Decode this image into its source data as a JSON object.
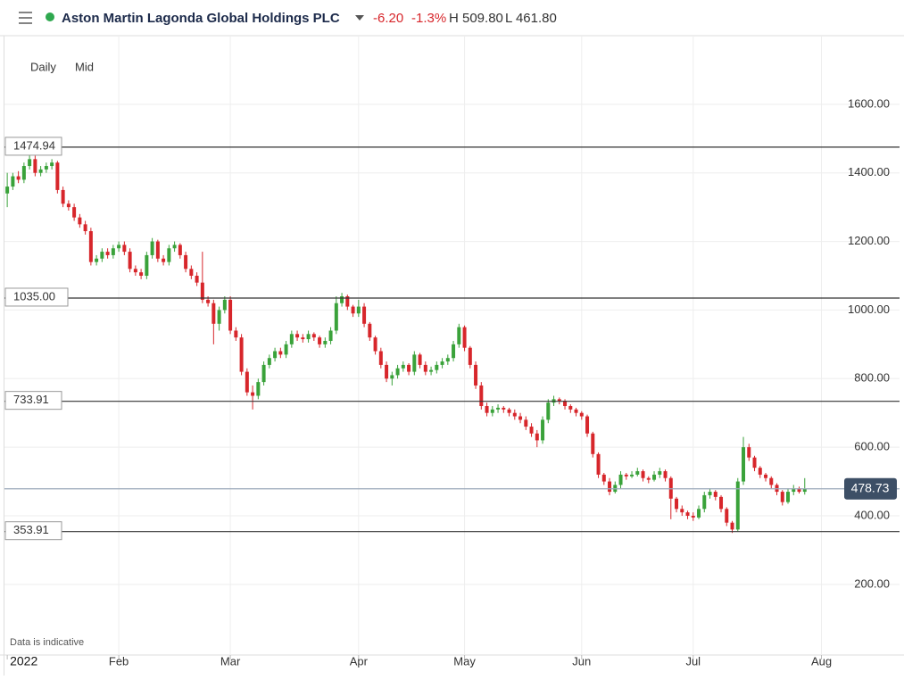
{
  "header": {
    "title": "Aston Martin Lagonda Global Holdings PLC",
    "change": "-6.20",
    "change_pct": "-1.3%",
    "high": "H 509.80",
    "low": "L 461.80"
  },
  "chart_data": {
    "type": "candlestick",
    "interval": "Daily",
    "price_type": "Mid",
    "note": "Data is indicative",
    "up_color": "#3aa23a",
    "down_color": "#d7262b",
    "grid": true,
    "xlim": [
      -0.5,
      160
    ],
    "ylim": [
      -6,
      1800
    ],
    "xticks": [
      {
        "value": 0,
        "label": "2022"
      },
      {
        "value": 20,
        "label": "Feb"
      },
      {
        "value": 40,
        "label": "Mar"
      },
      {
        "value": 63,
        "label": "Apr"
      },
      {
        "value": 82,
        "label": "May"
      },
      {
        "value": 103,
        "label": "Jun"
      },
      {
        "value": 123,
        "label": "Jul"
      },
      {
        "value": 146,
        "label": "Aug"
      }
    ],
    "yticks": [
      {
        "value": 200,
        "label": "200.00"
      },
      {
        "value": 400,
        "label": "400.00"
      },
      {
        "value": 600,
        "label": "600.00"
      },
      {
        "value": 800,
        "label": "800.00"
      },
      {
        "value": 1000,
        "label": "1000.00"
      },
      {
        "value": 1200,
        "label": "1200.00"
      },
      {
        "value": 1400,
        "label": "1400.00"
      },
      {
        "value": 1600,
        "label": "1600.00"
      }
    ],
    "levels": [
      1474.94,
      {
        "value": 1035,
        "label": "1035.00"
      },
      733.91,
      353.91
    ],
    "last_price": 478.73,
    "candles": [
      [
        1340,
        1400,
        1300,
        1360
      ],
      [
        1360,
        1400,
        1350,
        1390
      ],
      [
        1390,
        1405,
        1370,
        1380
      ],
      [
        1380,
        1430,
        1370,
        1420
      ],
      [
        1420,
        1475,
        1410,
        1440
      ],
      [
        1440,
        1450,
        1390,
        1400
      ],
      [
        1400,
        1420,
        1390,
        1410
      ],
      [
        1410,
        1430,
        1400,
        1420
      ],
      [
        1420,
        1440,
        1410,
        1430
      ],
      [
        1430,
        1435,
        1340,
        1350
      ],
      [
        1350,
        1360,
        1300,
        1310
      ],
      [
        1310,
        1320,
        1290,
        1300
      ],
      [
        1300,
        1310,
        1260,
        1270
      ],
      [
        1270,
        1280,
        1240,
        1250
      ],
      [
        1250,
        1260,
        1220,
        1230
      ],
      [
        1230,
        1240,
        1130,
        1140
      ],
      [
        1140,
        1160,
        1130,
        1150
      ],
      [
        1150,
        1180,
        1140,
        1170
      ],
      [
        1170,
        1180,
        1150,
        1160
      ],
      [
        1160,
        1190,
        1150,
        1180
      ],
      [
        1180,
        1200,
        1170,
        1190
      ],
      [
        1190,
        1200,
        1160,
        1170
      ],
      [
        1170,
        1180,
        1110,
        1120
      ],
      [
        1120,
        1130,
        1100,
        1110
      ],
      [
        1110,
        1120,
        1090,
        1100
      ],
      [
        1100,
        1170,
        1090,
        1160
      ],
      [
        1160,
        1210,
        1150,
        1200
      ],
      [
        1200,
        1205,
        1140,
        1150
      ],
      [
        1150,
        1160,
        1130,
        1140
      ],
      [
        1140,
        1190,
        1130,
        1180
      ],
      [
        1180,
        1200,
        1170,
        1190
      ],
      [
        1190,
        1195,
        1150,
        1160
      ],
      [
        1160,
        1170,
        1110,
        1120
      ],
      [
        1120,
        1130,
        1090,
        1100
      ],
      [
        1100,
        1110,
        1070,
        1080
      ],
      [
        1080,
        1170,
        1020,
        1030
      ],
      [
        1030,
        1040,
        1010,
        1020
      ],
      [
        1020,
        1030,
        900,
        960
      ],
      [
        960,
        1010,
        940,
        1000
      ],
      [
        1000,
        1040,
        990,
        1030
      ],
      [
        1030,
        1040,
        930,
        940
      ],
      [
        940,
        950,
        910,
        920
      ],
      [
        920,
        930,
        810,
        820
      ],
      [
        820,
        830,
        750,
        760
      ],
      [
        760,
        780,
        710,
        750
      ],
      [
        750,
        800,
        740,
        790
      ],
      [
        790,
        850,
        780,
        840
      ],
      [
        840,
        870,
        830,
        860
      ],
      [
        860,
        890,
        850,
        880
      ],
      [
        880,
        890,
        860,
        870
      ],
      [
        870,
        910,
        860,
        900
      ],
      [
        900,
        940,
        890,
        930
      ],
      [
        930,
        940,
        910,
        920
      ],
      [
        920,
        930,
        905,
        915
      ],
      [
        915,
        940,
        905,
        930
      ],
      [
        930,
        935,
        910,
        920
      ],
      [
        920,
        925,
        890,
        900
      ],
      [
        900,
        920,
        890,
        910
      ],
      [
        910,
        950,
        900,
        940
      ],
      [
        940,
        1040,
        930,
        1020
      ],
      [
        1020,
        1050,
        1010,
        1040
      ],
      [
        1040,
        1045,
        1000,
        1010
      ],
      [
        1010,
        1015,
        980,
        990
      ],
      [
        990,
        1030,
        980,
        1010
      ],
      [
        1010,
        1020,
        950,
        960
      ],
      [
        960,
        965,
        910,
        920
      ],
      [
        920,
        925,
        870,
        880
      ],
      [
        880,
        890,
        830,
        840
      ],
      [
        840,
        850,
        790,
        800
      ],
      [
        800,
        820,
        780,
        810
      ],
      [
        810,
        840,
        800,
        830
      ],
      [
        830,
        850,
        820,
        840
      ],
      [
        840,
        845,
        810,
        820
      ],
      [
        820,
        880,
        810,
        870
      ],
      [
        870,
        875,
        830,
        840
      ],
      [
        840,
        850,
        810,
        820
      ],
      [
        820,
        835,
        810,
        825
      ],
      [
        825,
        850,
        815,
        840
      ],
      [
        840,
        860,
        830,
        850
      ],
      [
        850,
        870,
        840,
        860
      ],
      [
        860,
        910,
        850,
        900
      ],
      [
        900,
        960,
        890,
        950
      ],
      [
        950,
        955,
        880,
        890
      ],
      [
        890,
        895,
        830,
        840
      ],
      [
        840,
        850,
        770,
        780
      ],
      [
        780,
        790,
        710,
        720
      ],
      [
        720,
        730,
        690,
        700
      ],
      [
        700,
        720,
        690,
        710
      ],
      [
        710,
        725,
        700,
        715
      ],
      [
        715,
        720,
        700,
        710
      ],
      [
        710,
        715,
        690,
        700
      ],
      [
        700,
        710,
        680,
        690
      ],
      [
        690,
        700,
        670,
        680
      ],
      [
        680,
        690,
        650,
        660
      ],
      [
        660,
        670,
        630,
        640
      ],
      [
        640,
        650,
        600,
        620
      ],
      [
        620,
        690,
        610,
        680
      ],
      [
        680,
        740,
        670,
        730
      ],
      [
        730,
        750,
        720,
        740
      ],
      [
        740,
        745,
        725,
        735
      ],
      [
        735,
        740,
        710,
        720
      ],
      [
        720,
        725,
        700,
        710
      ],
      [
        710,
        715,
        690,
        700
      ],
      [
        700,
        705,
        680,
        690
      ],
      [
        690,
        695,
        630,
        640
      ],
      [
        640,
        645,
        570,
        580
      ],
      [
        580,
        585,
        510,
        520
      ],
      [
        520,
        525,
        490,
        500
      ],
      [
        500,
        510,
        460,
        470
      ],
      [
        470,
        500,
        465,
        490
      ],
      [
        490,
        530,
        480,
        520
      ],
      [
        520,
        525,
        505,
        515
      ],
      [
        515,
        530,
        510,
        520
      ],
      [
        520,
        540,
        515,
        530
      ],
      [
        530,
        535,
        500,
        510
      ],
      [
        510,
        515,
        495,
        505
      ],
      [
        505,
        530,
        500,
        520
      ],
      [
        520,
        540,
        510,
        530
      ],
      [
        530,
        535,
        500,
        510
      ],
      [
        510,
        515,
        390,
        450
      ],
      [
        450,
        455,
        410,
        420
      ],
      [
        420,
        430,
        400,
        410
      ],
      [
        410,
        415,
        390,
        400
      ],
      [
        400,
        410,
        385,
        395
      ],
      [
        395,
        430,
        390,
        420
      ],
      [
        420,
        470,
        410,
        460
      ],
      [
        460,
        480,
        450,
        470
      ],
      [
        470,
        475,
        445,
        455
      ],
      [
        455,
        460,
        410,
        420
      ],
      [
        420,
        425,
        370,
        380
      ],
      [
        380,
        385,
        350,
        360
      ],
      [
        360,
        510,
        355,
        500
      ],
      [
        500,
        630,
        490,
        600
      ],
      [
        600,
        610,
        560,
        570
      ],
      [
        570,
        575,
        530,
        540
      ],
      [
        540,
        545,
        510,
        520
      ],
      [
        520,
        525,
        500,
        510
      ],
      [
        510,
        515,
        480,
        490
      ],
      [
        490,
        495,
        460,
        470
      ],
      [
        470,
        475,
        430,
        440
      ],
      [
        440,
        480,
        435,
        470
      ],
      [
        470,
        490,
        460,
        480
      ],
      [
        480,
        485,
        465,
        470
      ],
      [
        470,
        509.8,
        461.8,
        478.73
      ]
    ]
  }
}
